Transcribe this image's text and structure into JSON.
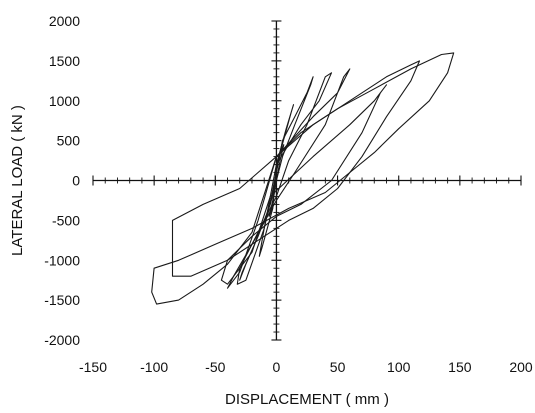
{
  "chart_data": {
    "type": "line",
    "title": "",
    "xlabel": "DISPLACEMENT ( mm )",
    "ylabel": "LATERAL LOAD ( kN )",
    "xlim": [
      -150,
      200
    ],
    "ylim": [
      -2000,
      2000
    ],
    "x_ticks": [
      -150,
      -100,
      -50,
      0,
      50,
      100,
      150,
      200
    ],
    "y_ticks": [
      -2000,
      -1500,
      -1000,
      -500,
      0,
      500,
      1000,
      1500,
      2000
    ],
    "x_tick_labels": [
      "-150",
      "-100",
      "-50",
      "0",
      "50",
      "100",
      "150",
      "200"
    ],
    "y_tick_labels": [
      "-2000",
      "-1500",
      "-1000",
      "-500",
      "0",
      "500",
      "1000",
      "1500",
      "2000"
    ],
    "grid": false,
    "axes_through_origin": true,
    "legend": "none",
    "line_color": "#1a1a1a",
    "series": [
      {
        "x": [
          0,
          3,
          6,
          4,
          0,
          -3,
          -6,
          -4,
          0
        ],
        "y": [
          0,
          250,
          450,
          380,
          150,
          -250,
          -450,
          -380,
          0
        ]
      },
      {
        "x": [
          0,
          8,
          14,
          12,
          3,
          -4,
          -10,
          -14,
          -12,
          -3,
          0
        ],
        "y": [
          200,
          650,
          950,
          850,
          350,
          -200,
          -600,
          -950,
          -850,
          -350,
          200
        ]
      },
      {
        "x": [
          5,
          15,
          25,
          30,
          28,
          15,
          5,
          -5,
          -15,
          -25,
          -30,
          -28,
          -15,
          -5,
          5
        ],
        "y": [
          500,
          800,
          1100,
          1300,
          1200,
          700,
          300,
          -300,
          -700,
          -1050,
          -1250,
          -1150,
          -700,
          -300,
          500
        ]
      },
      {
        "x": [
          0,
          20,
          35,
          45,
          40,
          25,
          10,
          0,
          -15,
          -30,
          -32,
          -25,
          -10,
          0
        ],
        "y": [
          200,
          700,
          1000,
          1350,
          1300,
          700,
          250,
          -200,
          -650,
          -1100,
          -1300,
          -1250,
          -600,
          200
        ]
      },
      {
        "x": [
          0,
          30,
          50,
          60,
          55,
          40,
          15,
          0,
          -20,
          -35,
          -40,
          -30,
          -15,
          0
        ],
        "y": [
          300,
          800,
          1100,
          1400,
          1300,
          700,
          100,
          -250,
          -800,
          -1200,
          -1350,
          -1150,
          -500,
          300
        ]
      },
      {
        "x": [
          -5,
          30,
          60,
          80,
          90,
          85,
          70,
          45,
          20,
          0,
          -20,
          -40,
          -45,
          -40,
          -20,
          -5
        ],
        "y": [
          -200,
          300,
          700,
          1000,
          1200,
          1100,
          600,
          0,
          -300,
          -450,
          -700,
          -1000,
          -1250,
          -1300,
          -900,
          -200
        ]
      },
      {
        "x": [
          0,
          30,
          60,
          90,
          110,
          117,
          110,
          90,
          70,
          50,
          30,
          10,
          -10,
          -40,
          -70,
          -85,
          -85,
          -60,
          -30,
          0
        ],
        "y": [
          300,
          700,
          1000,
          1300,
          1450,
          1500,
          1250,
          800,
          300,
          -100,
          -350,
          -500,
          -700,
          -1000,
          -1200,
          -1200,
          -500,
          -300,
          -100,
          300
        ]
      },
      {
        "x": [
          0,
          20,
          50,
          80,
          110,
          135,
          145,
          140,
          125,
          100,
          80,
          60,
          40,
          10,
          -20,
          -50,
          -80,
          -100,
          -102,
          -98,
          -80,
          -60,
          -40,
          -20,
          0
        ],
        "y": [
          300,
          600,
          900,
          1150,
          1400,
          1580,
          1600,
          1350,
          1000,
          650,
          350,
          100,
          -150,
          -350,
          -600,
          -800,
          -1000,
          -1100,
          -1400,
          -1550,
          -1500,
          -1300,
          -1050,
          -650,
          300
        ]
      }
    ]
  }
}
